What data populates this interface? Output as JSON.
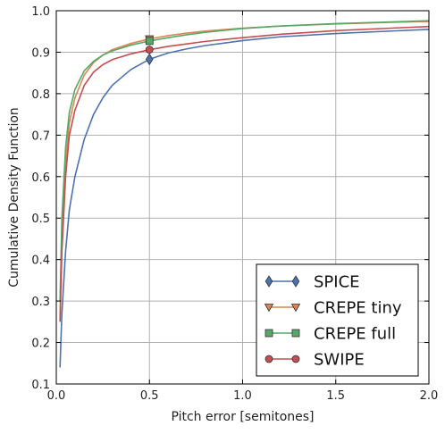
{
  "chart_data": {
    "type": "line",
    "title": "",
    "xlabel": "Pitch error [semitones]",
    "ylabel": "Cumulative Density Function",
    "xlim": [
      0.0,
      2.0
    ],
    "ylim": [
      0.1,
      1.0
    ],
    "x_ticks": [
      0.0,
      0.5,
      1.0,
      1.5,
      2.0
    ],
    "x_tick_labels": [
      "0.0",
      "0.5",
      "1.0",
      "1.5",
      "2.0"
    ],
    "y_ticks": [
      0.1,
      0.2,
      0.3,
      0.4,
      0.5,
      0.6,
      0.7,
      0.8,
      0.9,
      1.0
    ],
    "y_tick_labels": [
      "0.1",
      "0.2",
      "0.3",
      "0.4",
      "0.5",
      "0.6",
      "0.7",
      "0.8",
      "0.9",
      "1.0"
    ],
    "grid": true,
    "legend_position": "lower-right",
    "series": [
      {
        "name": "SPICE",
        "color": "#4c72b0",
        "marker": "diamond",
        "marker_at": [
          0.5,
          0.883
        ],
        "x": [
          0.02,
          0.03,
          0.05,
          0.07,
          0.1,
          0.15,
          0.2,
          0.25,
          0.3,
          0.4,
          0.5,
          0.6,
          0.7,
          0.8,
          1.0,
          1.2,
          1.5,
          1.8,
          2.0
        ],
        "y": [
          0.14,
          0.27,
          0.42,
          0.52,
          0.6,
          0.69,
          0.75,
          0.79,
          0.82,
          0.858,
          0.883,
          0.898,
          0.908,
          0.916,
          0.928,
          0.937,
          0.945,
          0.951,
          0.955
        ]
      },
      {
        "name": "CREPE tiny",
        "color": "#dd8452",
        "marker": "triangle-down",
        "marker_at": [
          0.5,
          0.932
        ],
        "x": [
          0.02,
          0.03,
          0.05,
          0.07,
          0.1,
          0.15,
          0.2,
          0.25,
          0.3,
          0.4,
          0.5,
          0.6,
          0.7,
          0.8,
          1.0,
          1.2,
          1.5,
          1.8,
          2.0
        ],
        "y": [
          0.26,
          0.45,
          0.63,
          0.73,
          0.79,
          0.845,
          0.875,
          0.893,
          0.906,
          0.921,
          0.932,
          0.94,
          0.946,
          0.951,
          0.958,
          0.963,
          0.968,
          0.972,
          0.974
        ]
      },
      {
        "name": "CREPE full",
        "color": "#55a868",
        "marker": "square",
        "marker_at": [
          0.5,
          0.927
        ],
        "x": [
          0.02,
          0.03,
          0.05,
          0.07,
          0.1,
          0.15,
          0.2,
          0.25,
          0.3,
          0.4,
          0.5,
          0.6,
          0.7,
          0.8,
          1.0,
          1.2,
          1.5,
          1.8,
          2.0
        ],
        "y": [
          0.3,
          0.5,
          0.67,
          0.755,
          0.81,
          0.855,
          0.878,
          0.893,
          0.903,
          0.917,
          0.927,
          0.935,
          0.942,
          0.948,
          0.957,
          0.963,
          0.969,
          0.973,
          0.976
        ]
      },
      {
        "name": "SWIPE",
        "color": "#c44e52",
        "marker": "circle",
        "marker_at": [
          0.5,
          0.906
        ],
        "x": [
          0.02,
          0.03,
          0.05,
          0.07,
          0.1,
          0.15,
          0.2,
          0.25,
          0.3,
          0.4,
          0.5,
          0.6,
          0.7,
          0.8,
          1.0,
          1.2,
          1.5,
          1.8,
          2.0
        ],
        "y": [
          0.25,
          0.42,
          0.6,
          0.7,
          0.76,
          0.82,
          0.852,
          0.87,
          0.882,
          0.896,
          0.906,
          0.914,
          0.92,
          0.926,
          0.935,
          0.943,
          0.952,
          0.958,
          0.962
        ]
      }
    ]
  }
}
